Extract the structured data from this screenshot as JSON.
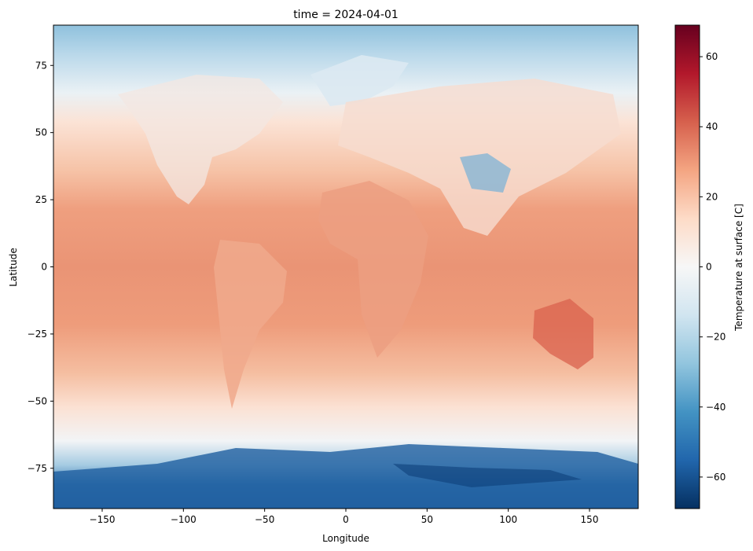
{
  "chart_data": {
    "type": "heatmap",
    "title": "time = 2024-04-01",
    "xlabel": "Longitude",
    "ylabel": "Latitude",
    "xlim": [
      -180,
      180
    ],
    "ylim": [
      -90,
      90
    ],
    "x_ticks": [
      -150,
      -100,
      -50,
      0,
      50,
      100,
      150
    ],
    "x_tick_labels": [
      "−150",
      "−100",
      "−50",
      "0",
      "50",
      "100",
      "150"
    ],
    "y_ticks": [
      75,
      50,
      25,
      0,
      -25,
      -50,
      -75
    ],
    "y_tick_labels": [
      "75",
      "50",
      "25",
      "0",
      "−25",
      "−50",
      "−75"
    ],
    "grid": false,
    "colorbar": {
      "label": "Temperature at surface [C]",
      "colormap": "RdBu_r",
      "range": [
        -69,
        69
      ],
      "ticks": [
        60,
        40,
        20,
        0,
        -20,
        -40,
        -60
      ],
      "tick_labels": [
        "60",
        "40",
        "20",
        "0",
        "−20",
        "−40",
        "−60"
      ],
      "placement": "right"
    },
    "colormap_stops": [
      "#053061",
      "#2166ac",
      "#4393c3",
      "#92c5de",
      "#d1e5f0",
      "#f7f7f7",
      "#fddbc7",
      "#f4a582",
      "#d6604d",
      "#b2182b",
      "#67001f"
    ],
    "field_description": "global surface temperature, warm (20-35C) in tropics, cold (-20 to -65C) over Antarctica and Greenland"
  }
}
